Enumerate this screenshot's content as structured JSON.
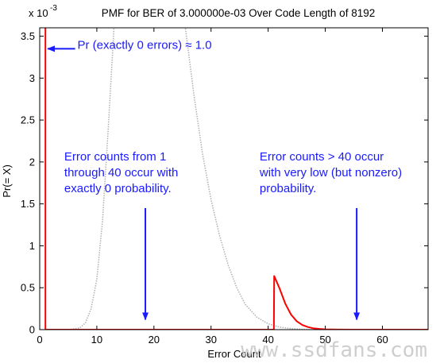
{
  "chart_data": {
    "type": "line",
    "title": "PMF for BER of 3.000000e-03 Over Code Length of 8192",
    "xlabel": "Error Count",
    "ylabel": "Pr(= X)",
    "y_exponent_label": "x 10",
    "y_exponent_power": "-3",
    "xlim": [
      0,
      68
    ],
    "ylim": [
      0,
      3.6
    ],
    "x_ticks": [
      "0",
      "10",
      "20",
      "30",
      "40",
      "50",
      "60"
    ],
    "y_ticks": [
      "0",
      "0.5",
      "1",
      "1.5",
      "2",
      "2.5",
      "3",
      "3.5"
    ],
    "grid": false,
    "series": [
      {
        "color": "#ff0000",
        "style": "solid",
        "points": [
          [
            1,
            3.6
          ],
          [
            1,
            0
          ],
          [
            41,
            0
          ],
          [
            41.05,
            0.64
          ],
          [
            42,
            0.49
          ],
          [
            43,
            0.31
          ],
          [
            44,
            0.18
          ],
          [
            45,
            0.1
          ],
          [
            46,
            0.055
          ],
          [
            47,
            0.03
          ],
          [
            48,
            0.015
          ],
          [
            49,
            0.008
          ],
          [
            50,
            0.004
          ],
          [
            52,
            0.001
          ],
          [
            55,
            0.0002
          ],
          [
            68,
            0
          ]
        ]
      },
      {
        "color": "#b0b0b0",
        "style": "dotted",
        "points": [
          [
            0,
            0
          ],
          [
            5,
            0.0
          ],
          [
            7,
            0.02
          ],
          [
            8,
            0.08
          ],
          [
            9,
            0.25
          ],
          [
            10,
            0.6
          ],
          [
            11,
            1.3
          ],
          [
            12,
            2.4
          ],
          [
            13,
            3.6
          ],
          [
            13.8,
            4.8
          ],
          [
            24.8,
            4.8
          ],
          [
            25.5,
            3.6
          ],
          [
            27,
            2.8
          ],
          [
            28.5,
            2.1
          ],
          [
            30,
            1.55
          ],
          [
            31.5,
            1.12
          ],
          [
            33,
            0.77
          ],
          [
            34.5,
            0.5
          ],
          [
            36,
            0.3
          ],
          [
            38,
            0.15
          ],
          [
            40,
            0.07
          ],
          [
            42,
            0.03
          ],
          [
            44,
            0.012
          ],
          [
            46,
            0.004
          ],
          [
            48,
            0.001
          ],
          [
            68,
            0
          ]
        ]
      }
    ],
    "annotations": [
      {
        "lines": [
          "Pr (exactly 0 errors) ≈ 1.0"
        ],
        "text_x": 6.6,
        "text_y": 3.35,
        "arrow_from": [
          6.2,
          3.35
        ],
        "arrow_to": [
          1.4,
          3.35
        ]
      },
      {
        "lines": [
          "Error counts from 1",
          "through 40 occur with",
          "exactly 0 probability."
        ],
        "text_x": 4.3,
        "text_y": 2.02,
        "arrow_from": [
          18.5,
          1.45
        ],
        "arrow_to": [
          18.5,
          0.12
        ]
      },
      {
        "lines": [
          "Error counts > 40 occur",
          "with very low (but nonzero)",
          "probability."
        ],
        "text_x": 38.5,
        "text_y": 2.02,
        "arrow_from": [
          55.5,
          1.45
        ],
        "arrow_to": [
          55.5,
          0.12
        ]
      }
    ],
    "watermark": "www.ssdfans.com"
  }
}
